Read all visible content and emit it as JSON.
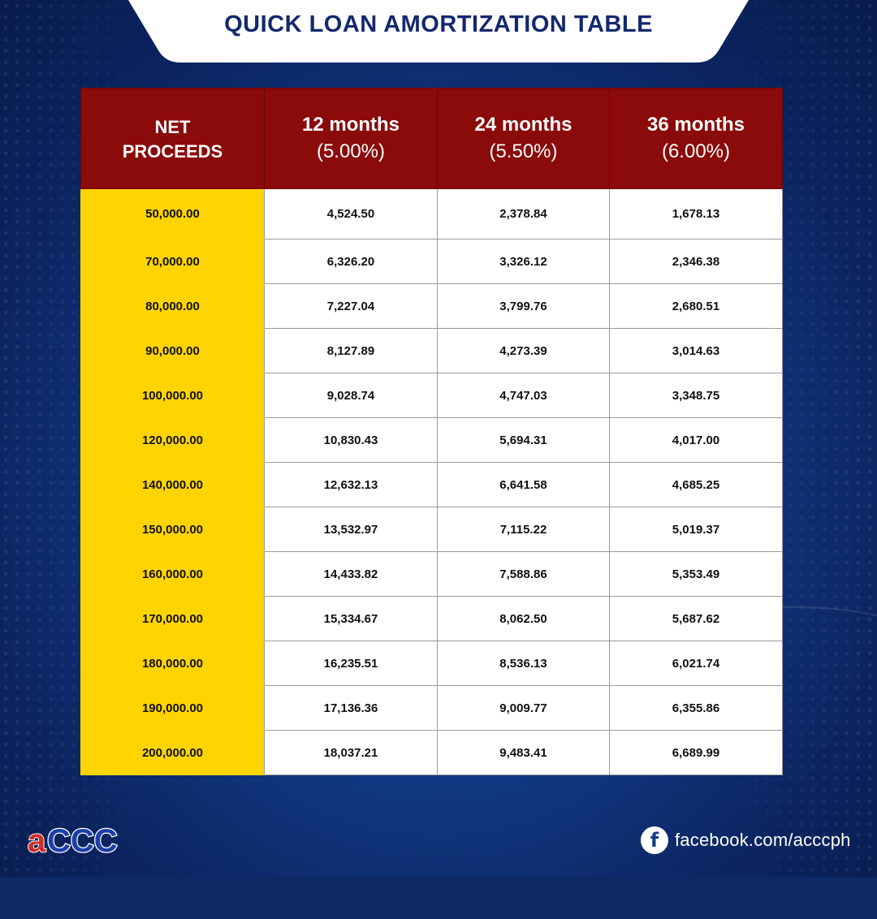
{
  "title": "QUICK LOAN AMORTIZATION TABLE",
  "colors": {
    "header_bg": "#8b0a0a",
    "net_proceeds_bg": "#ffd400",
    "title_text": "#14286e",
    "background": "#0d2a66"
  },
  "table": {
    "header": {
      "net_proceeds_line1": "NET",
      "net_proceeds_line2": "PROCEEDS",
      "terms": [
        {
          "label": "12 months",
          "rate": "(5.00%)"
        },
        {
          "label": "24 months",
          "rate": "(5.50%)"
        },
        {
          "label": "36 months",
          "rate": "(6.00%)"
        }
      ]
    },
    "rows": [
      {
        "net": "50,000.00",
        "m12": "4,524.50",
        "m24": "2,378.84",
        "m36": "1,678.13"
      },
      {
        "net": "70,000.00",
        "m12": "6,326.20",
        "m24": "3,326.12",
        "m36": "2,346.38"
      },
      {
        "net": "80,000.00",
        "m12": "7,227.04",
        "m24": "3,799.76",
        "m36": "2,680.51"
      },
      {
        "net": "90,000.00",
        "m12": "8,127.89",
        "m24": "4,273.39",
        "m36": "3,014.63"
      },
      {
        "net": "100,000.00",
        "m12": "9,028.74",
        "m24": "4,747.03",
        "m36": "3,348.75"
      },
      {
        "net": "120,000.00",
        "m12": "10,830.43",
        "m24": "5,694.31",
        "m36": "4,017.00"
      },
      {
        "net": "140,000.00",
        "m12": "12,632.13",
        "m24": "6,641.58",
        "m36": "4,685.25"
      },
      {
        "net": "150,000.00",
        "m12": "13,532.97",
        "m24": "7,115.22",
        "m36": "5,019.37"
      },
      {
        "net": "160,000.00",
        "m12": "14,433.82",
        "m24": "7,588.86",
        "m36": "5,353.49"
      },
      {
        "net": "170,000.00",
        "m12": "15,334.67",
        "m24": "8,062.50",
        "m36": "5,687.62"
      },
      {
        "net": "180,000.00",
        "m12": "16,235.51",
        "m24": "8,536.13",
        "m36": "6,021.74"
      },
      {
        "net": "190,000.00",
        "m12": "17,136.36",
        "m24": "9,009.77",
        "m36": "6,355.86"
      },
      {
        "net": "200,000.00",
        "m12": "18,037.21",
        "m24": "9,483.41",
        "m36": "6,689.99"
      }
    ]
  },
  "footer": {
    "logo_text": "aCCC",
    "social_icon": "facebook-icon",
    "social_text": "facebook.com/acccph"
  }
}
